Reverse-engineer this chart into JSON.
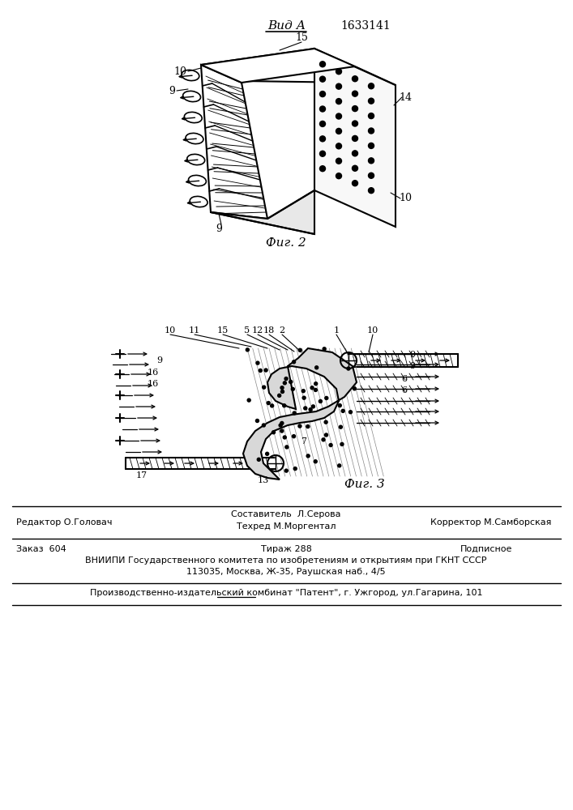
{
  "patent_number": "1633141",
  "view_label": "Вид А",
  "fig2_label": "Фиг. 2",
  "fig3_label": "Фиг. 3",
  "bg_color": "#ffffff",
  "line_color": "#000000",
  "footer": {
    "editor": "Редактор О.Головач",
    "composer": "Составитель  Л.Серова",
    "techred": "Техред М.Моргентал",
    "corrector": "Корректор М.Самборская",
    "order": "Заказ  604",
    "circulation": "Тираж 288",
    "subscription": "Подписное",
    "vnipi_line1": "ВНИИПИ Государственного комитета по изобретениям и открытиям при ГКНТ СССР",
    "vnipi_line2": "113035, Москва, Ж-35, Раушская наб., 4/5",
    "production": "Производственно-издательский комбинат \"Патент\", г. Ужгород, ул.Гагарина, 101"
  }
}
